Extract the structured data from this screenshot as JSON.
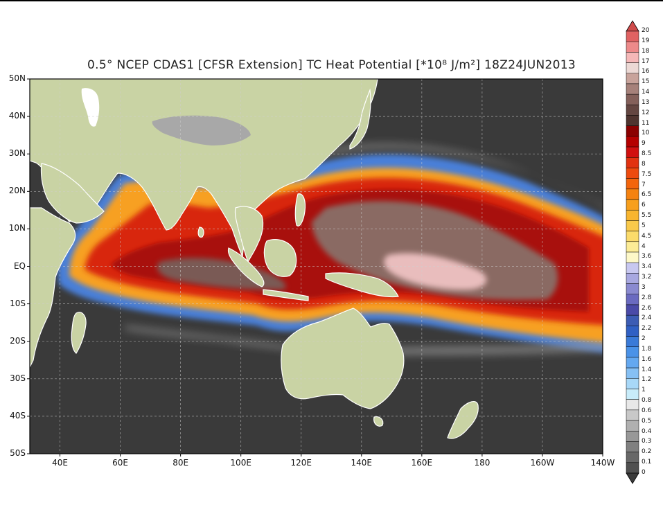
{
  "title": "0.5° NCEP CDAS1 [CFSR Extension] TC Heat Potential [*10⁸ J/m²] 18Z24JUN2013",
  "map": {
    "lat_labels": [
      "50N",
      "40N",
      "30N",
      "20N",
      "10N",
      "EQ",
      "10S",
      "20S",
      "30S",
      "40S",
      "50S"
    ],
    "lon_labels": [
      "40E",
      "60E",
      "80E",
      "100E",
      "120E",
      "140E",
      "160E",
      "180",
      "160W",
      "140W"
    ]
  },
  "colors": {
    "ocean_zero": "#3a3a3a",
    "land": "#c9d3a4",
    "land_dark": "#b9b48e",
    "plateau": "#a8a8a8"
  },
  "colorbar": {
    "levels": [
      "20",
      "19",
      "18",
      "17",
      "16",
      "15",
      "14",
      "13",
      "12",
      "11",
      "10",
      "9",
      "8.5",
      "8",
      "7.5",
      "7",
      "6.5",
      "6",
      "5.5",
      "5",
      "4.5",
      "4",
      "3.6",
      "3.4",
      "3.2",
      "3",
      "2.8",
      "2.6",
      "2.4",
      "2.2",
      "2",
      "1.8",
      "1.6",
      "1.4",
      "1.2",
      "1",
      "0.8",
      "0.6",
      "0.5",
      "0.4",
      "0.3",
      "0.2",
      "0.1",
      "0"
    ],
    "colors": [
      "#cf4b4b",
      "#e06262",
      "#ed8a8a",
      "#f5b8b8",
      "#ecd9d5",
      "#c8a39b",
      "#a6817a",
      "#84605a",
      "#644641",
      "#4f342f",
      "#8b0000",
      "#b50000",
      "#d10f0f",
      "#e23210",
      "#ee4b0e",
      "#f3650c",
      "#f58210",
      "#f79f1c",
      "#f8b52f",
      "#f9c94b",
      "#fbdb6b",
      "#fcec96",
      "#fdf8c8",
      "#c8c8f0",
      "#a8a8e0",
      "#8a8ad0",
      "#6a6ac0",
      "#4a4aa8",
      "#3c5cb4",
      "#3060c4",
      "#3a7ad8",
      "#4a92e8",
      "#64a8f0",
      "#86c0f4",
      "#a8d8f8",
      "#c8ecfa",
      "#e8e8e8",
      "#c8c8c8",
      "#b0b0b0",
      "#989898",
      "#808080",
      "#686868",
      "#505050",
      "#3a3a3a"
    ]
  }
}
